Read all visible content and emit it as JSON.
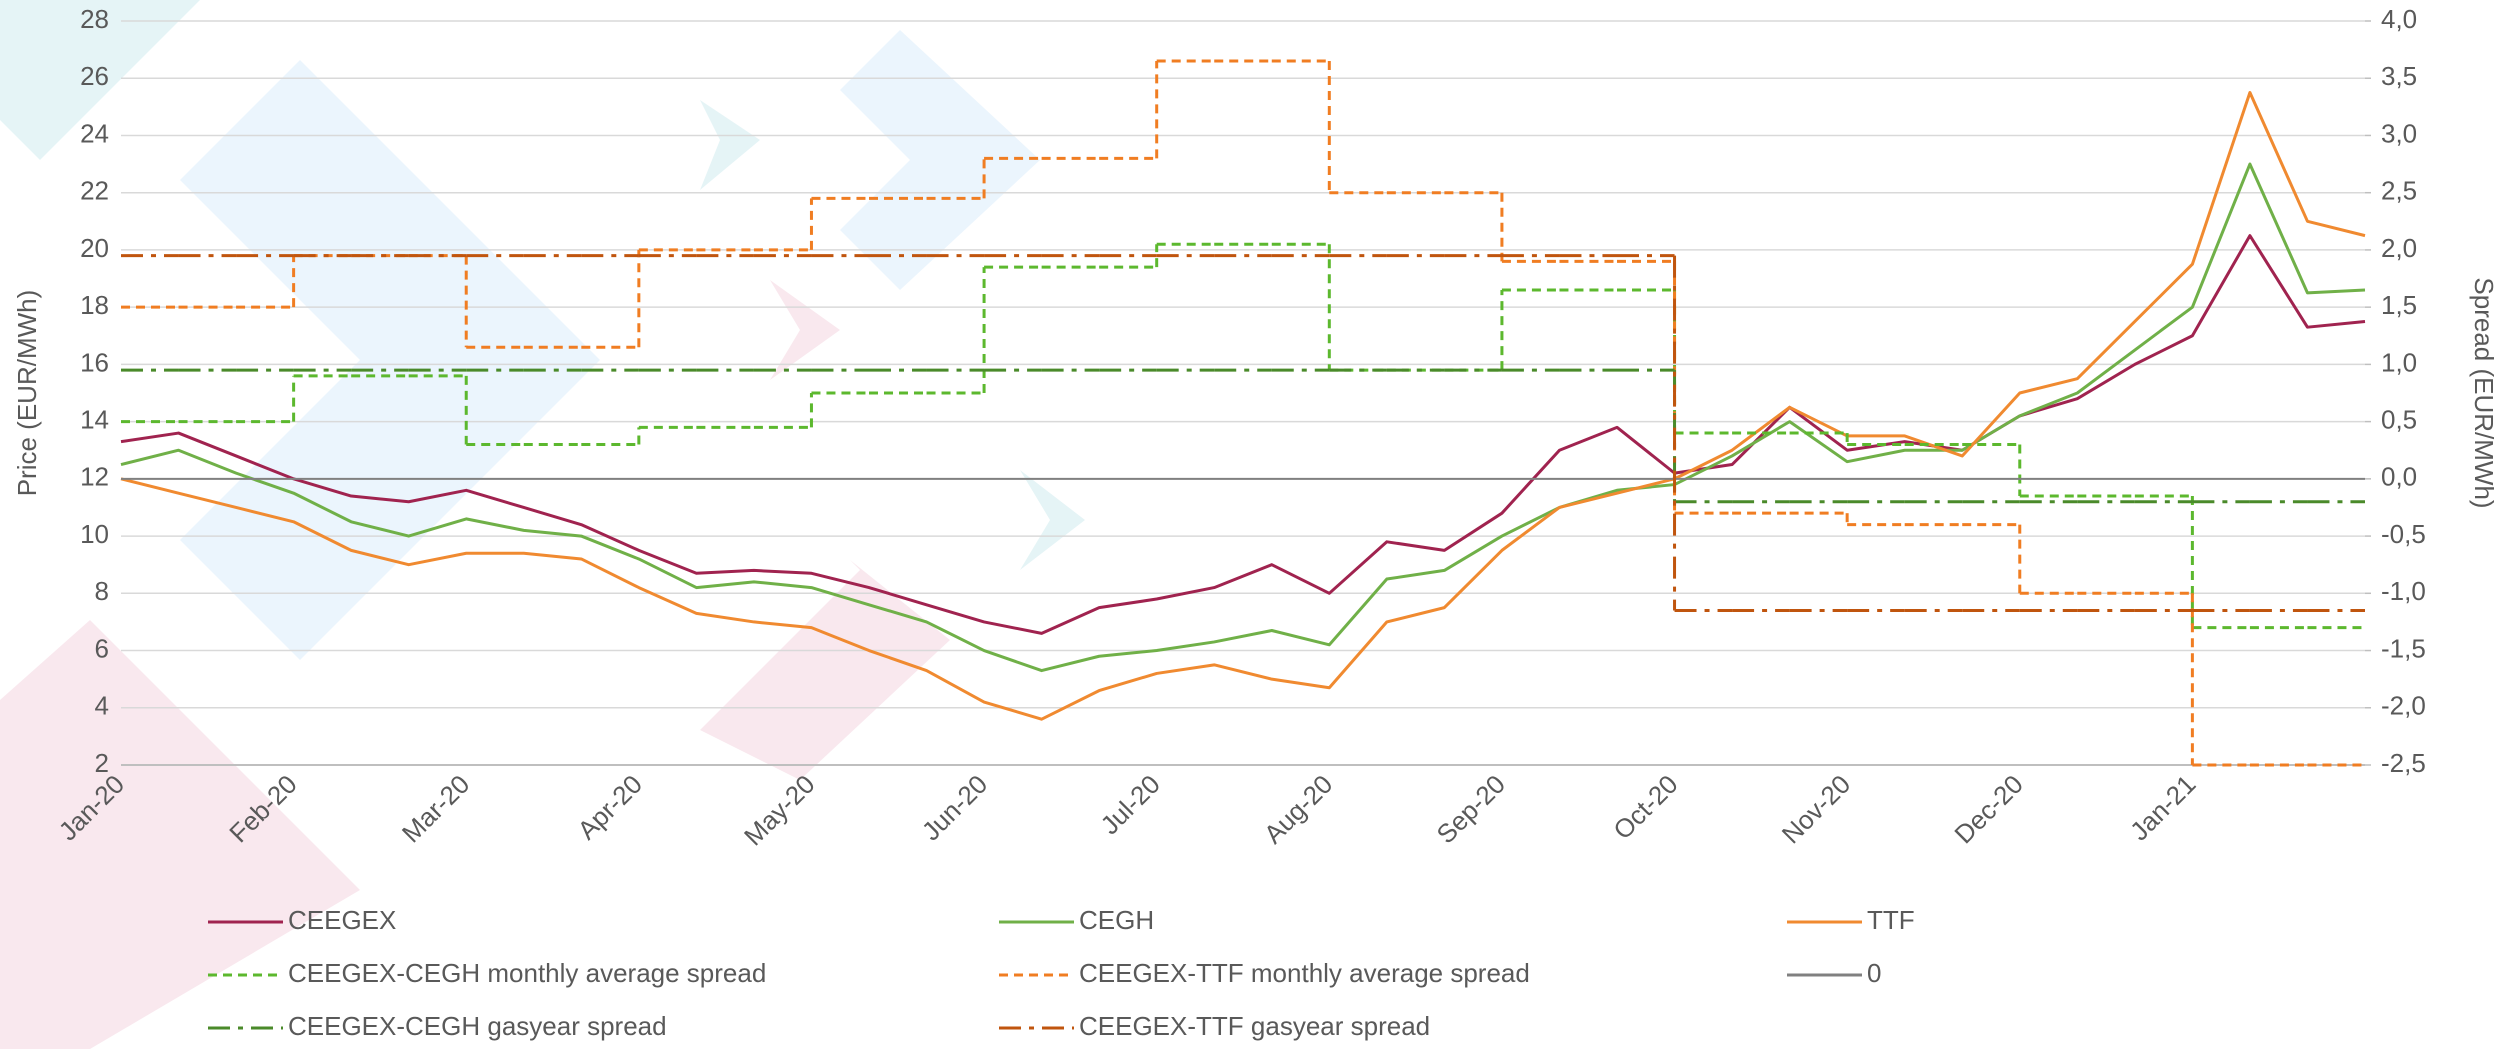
{
  "chart_data": {
    "type": "line",
    "ylabel": "Price (EUR/MWh)",
    "y2label": "Spread (EUR/MWh)",
    "categories": [
      "Jan-20",
      null,
      null,
      "Feb-20",
      null,
      null,
      "Mar-20",
      null,
      null,
      "Apr-20",
      null,
      null,
      "May-20",
      null,
      null,
      "Jun-20",
      null,
      null,
      "Jul-20",
      null,
      null,
      "Aug-20",
      null,
      null,
      "Sep-20",
      null,
      null,
      "Oct-20",
      null,
      null,
      "Nov-20",
      null,
      null,
      "Dec-20",
      null,
      null,
      "Jan-21",
      null,
      null,
      null
    ],
    "ylim": [
      2,
      28
    ],
    "yticks": [
      2,
      4,
      6,
      8,
      10,
      12,
      14,
      16,
      18,
      20,
      22,
      24,
      26,
      28
    ],
    "y2lim": [
      -2.5,
      4.0
    ],
    "y2ticks": [
      {
        "value": -2.5,
        "label": "-2,5"
      },
      {
        "value": -2.0,
        "label": "-2,0"
      },
      {
        "value": -1.5,
        "label": "-1,5"
      },
      {
        "value": -1.0,
        "label": "-1,0"
      },
      {
        "value": -0.5,
        "label": "-0,5"
      },
      {
        "value": 0.0,
        "label": "0,0"
      },
      {
        "value": 0.5,
        "label": "0,5"
      },
      {
        "value": 1.0,
        "label": "1,0"
      },
      {
        "value": 1.5,
        "label": "1,5"
      },
      {
        "value": 2.0,
        "label": "2,0"
      },
      {
        "value": 2.5,
        "label": "2,5"
      },
      {
        "value": 3.0,
        "label": "3,0"
      },
      {
        "value": 3.5,
        "label": "3,5"
      },
      {
        "value": 4.0,
        "label": "4,0"
      }
    ],
    "grid": true,
    "series": [
      {
        "name": "CEEGEX",
        "color": "#a0234f",
        "dash": "solid",
        "values": [
          13.3,
          13.6,
          12.8,
          12.0,
          11.4,
          11.2,
          11.6,
          11.0,
          10.4,
          9.5,
          8.7,
          8.8,
          8.7,
          8.2,
          7.6,
          7.0,
          6.6,
          7.5,
          7.8,
          8.2,
          9.0,
          8.0,
          9.8,
          9.5,
          10.8,
          13.0,
          13.8,
          12.2,
          12.5,
          14.5,
          13.0,
          13.3,
          13.0,
          14.2,
          14.8,
          16.0,
          17.0,
          20.5,
          17.3,
          17.5
        ]
      },
      {
        "name": "CEGH",
        "color": "#70b048",
        "dash": "solid",
        "values": [
          12.5,
          13.0,
          12.2,
          11.5,
          10.5,
          10.0,
          10.6,
          10.2,
          10.0,
          9.2,
          8.2,
          8.4,
          8.2,
          7.6,
          7.0,
          6.0,
          5.3,
          5.8,
          6.0,
          6.3,
          6.7,
          6.2,
          8.5,
          8.8,
          10.0,
          11.0,
          11.6,
          11.8,
          12.8,
          14.0,
          12.6,
          13.0,
          13.0,
          14.2,
          15.0,
          16.5,
          18.0,
          23.0,
          18.5,
          18.6
        ]
      },
      {
        "name": "TTF",
        "color": "#f08a30",
        "dash": "solid",
        "values": [
          12.0,
          11.5,
          11.0,
          10.5,
          9.5,
          9.0,
          9.4,
          9.4,
          9.2,
          8.2,
          7.3,
          7.0,
          6.8,
          6.0,
          5.3,
          4.2,
          3.6,
          4.6,
          5.2,
          5.5,
          5.0,
          4.7,
          7.0,
          7.5,
          9.5,
          11.0,
          11.5,
          12.0,
          13.0,
          14.5,
          13.5,
          13.5,
          12.8,
          15.0,
          15.5,
          17.5,
          19.5,
          25.5,
          21.0,
          20.5
        ]
      },
      {
        "name": "CEEGEX-CEGH monthly average spread",
        "color": "#5cb82e",
        "dash": "dashed",
        "step": true,
        "axis": "y2",
        "values": [
          0.5,
          0.5,
          0.5,
          0.9,
          0.9,
          0.9,
          0.3,
          0.3,
          0.3,
          0.45,
          0.45,
          0.45,
          0.75,
          0.75,
          0.75,
          1.85,
          1.85,
          1.85,
          2.05,
          2.05,
          2.05,
          0.95,
          0.95,
          0.95,
          1.65,
          1.65,
          1.65,
          0.4,
          0.4,
          0.4,
          0.3,
          0.3,
          0.3,
          -0.15,
          -0.15,
          -0.15,
          -1.3,
          -1.3,
          -1.3,
          -1.3
        ]
      },
      {
        "name": "CEEGEX-TTF monthly average spread",
        "color": "#f07d22",
        "dash": "dashed",
        "step": true,
        "axis": "y2",
        "values": [
          1.5,
          1.5,
          1.5,
          1.95,
          1.95,
          1.95,
          1.15,
          1.15,
          1.15,
          2.0,
          2.0,
          2.0,
          2.45,
          2.45,
          2.45,
          2.8,
          2.8,
          2.8,
          3.65,
          3.65,
          3.65,
          2.5,
          2.5,
          2.5,
          1.9,
          1.9,
          1.9,
          -0.3,
          -0.3,
          -0.3,
          -0.4,
          -0.4,
          -0.4,
          -1.0,
          -1.0,
          -1.0,
          -2.5,
          -2.5,
          -2.5,
          -2.5
        ]
      },
      {
        "name": "0",
        "color": "#808080",
        "dash": "solid",
        "axis": "y2",
        "values": [
          0,
          0,
          0,
          0,
          0,
          0,
          0,
          0,
          0,
          0,
          0,
          0,
          0,
          0,
          0,
          0,
          0,
          0,
          0,
          0,
          0,
          0,
          0,
          0,
          0,
          0,
          0,
          0,
          0,
          0,
          0,
          0,
          0,
          0,
          0,
          0,
          0,
          0,
          0,
          0
        ]
      },
      {
        "name": "CEEGEX-CEGH gasyear spread",
        "color": "#4a8a2a",
        "dash": "dashdot",
        "step": true,
        "axis": "y2",
        "values": [
          0.95,
          0.95,
          0.95,
          0.95,
          0.95,
          0.95,
          0.95,
          0.95,
          0.95,
          0.95,
          0.95,
          0.95,
          0.95,
          0.95,
          0.95,
          0.95,
          0.95,
          0.95,
          0.95,
          0.95,
          0.95,
          0.95,
          0.95,
          0.95,
          0.95,
          0.95,
          0.95,
          -0.2,
          -0.2,
          -0.2,
          -0.2,
          -0.2,
          -0.2,
          -0.2,
          -0.2,
          -0.2,
          -0.2,
          -0.2,
          -0.2,
          -0.2
        ]
      },
      {
        "name": "CEEGEX-TTF gasyear spread",
        "color": "#c0550e",
        "dash": "dashdot",
        "step": true,
        "axis": "y2",
        "values": [
          1.95,
          1.95,
          1.95,
          1.95,
          1.95,
          1.95,
          1.95,
          1.95,
          1.95,
          1.95,
          1.95,
          1.95,
          1.95,
          1.95,
          1.95,
          1.95,
          1.95,
          1.95,
          1.95,
          1.95,
          1.95,
          1.95,
          1.95,
          1.95,
          1.95,
          1.95,
          1.95,
          -1.15,
          -1.15,
          -1.15,
          -1.15,
          -1.15,
          -1.15,
          -1.15,
          -1.15,
          -1.15,
          -1.15,
          -1.15,
          -1.15,
          -1.15
        ]
      }
    ]
  }
}
